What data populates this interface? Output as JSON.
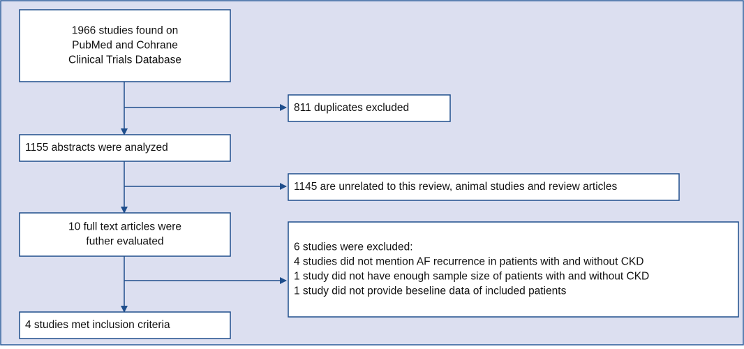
{
  "nodes": [
    {
      "lines": [
        "1966 studies found on",
        "PubMed and Cohrane",
        "Clinical Trials Database"
      ]
    },
    {
      "lines": [
        "1155 abstracts were analyzed"
      ]
    },
    {
      "lines": [
        "10 full text articles were",
        "futher evaluated"
      ]
    },
    {
      "lines": [
        "4 studies met inclusion criteria"
      ]
    }
  ],
  "exclusions": [
    {
      "lines": [
        "811 duplicates excluded"
      ]
    },
    {
      "lines": [
        "1145 are unrelated to this review, animal studies and review articles"
      ]
    },
    {
      "lines": [
        "6 studies were excluded:",
        "4 studies did not mention AF recurrence in patients with and without CKD",
        "1 study did not have enough sample size of patients with and without CKD",
        "1 study did not provide beseline data of included patients"
      ]
    }
  ]
}
